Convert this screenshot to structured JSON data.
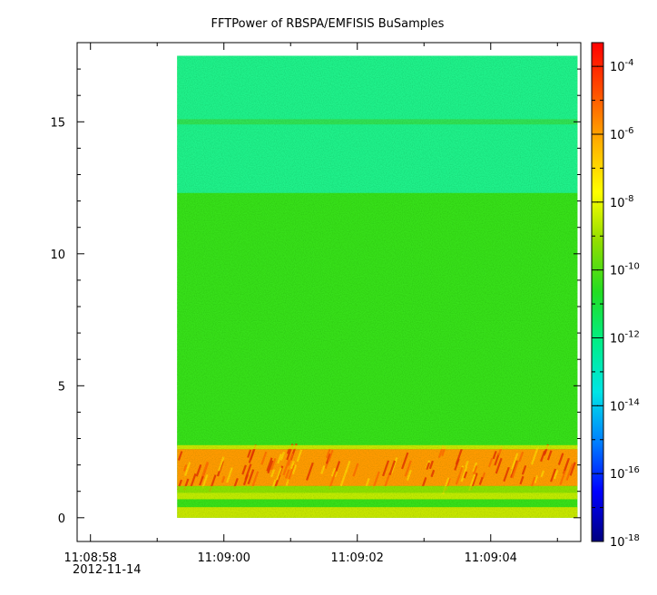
{
  "chart_data": {
    "type": "heatmap",
    "title": "FFTPower of RBSPA/EMFISIS  BuSamples",
    "xlabel": "",
    "ylabel": "",
    "x_axis": {
      "date_label": "2012-11-14",
      "ticks": [
        "11:08:58",
        "11:09:00",
        "11:09:02",
        "11:09:04"
      ]
    },
    "y_axis": {
      "ticks": [
        "0",
        "5",
        "10",
        "15"
      ],
      "ylim": [
        -0.9,
        18.0
      ]
    },
    "data_extent": {
      "time_start": "11:08:59.3",
      "time_end": "11:09:05.3",
      "y_min": 0,
      "y_max": 17.5
    },
    "colorbar": {
      "scale": "log",
      "range": [
        "1e-18",
        "5e-4"
      ],
      "ticks": [
        {
          "base": "10",
          "exp": "-4"
        },
        {
          "base": "10",
          "exp": "-6"
        },
        {
          "base": "10",
          "exp": "-8"
        },
        {
          "base": "10",
          "exp": "-10"
        },
        {
          "base": "10",
          "exp": "-12"
        },
        {
          "base": "10",
          "exp": "-14"
        },
        {
          "base": "10",
          "exp": "-16"
        },
        {
          "base": "10",
          "exp": "-18"
        }
      ],
      "colors": [
        "#00007f",
        "#0000ff",
        "#0080ff",
        "#00e5e5",
        "#00ee88",
        "#22dd22",
        "#8fdd00",
        "#ffff00",
        "#ffb000",
        "#ff5000",
        "#ff0000"
      ]
    },
    "regions": [
      {
        "y_from": 12.3,
        "y_to": 17.5,
        "power": "1e-13",
        "description_color": "#22f08a"
      },
      {
        "y_from": 14.9,
        "y_to": 15.1,
        "power": "1e-11",
        "description_color": "#33e055"
      },
      {
        "y_from": 2.7,
        "y_to": 12.3,
        "power": "1e-10",
        "description_color": "#38df1e"
      },
      {
        "y_from": 1.2,
        "y_to": 2.6,
        "power": "1e-6",
        "description_color": "#ff9a00"
      },
      {
        "y_from": 0.0,
        "y_to": 0.4,
        "power": "1e-8",
        "description_color": "#c8e600"
      }
    ],
    "grid": false
  }
}
